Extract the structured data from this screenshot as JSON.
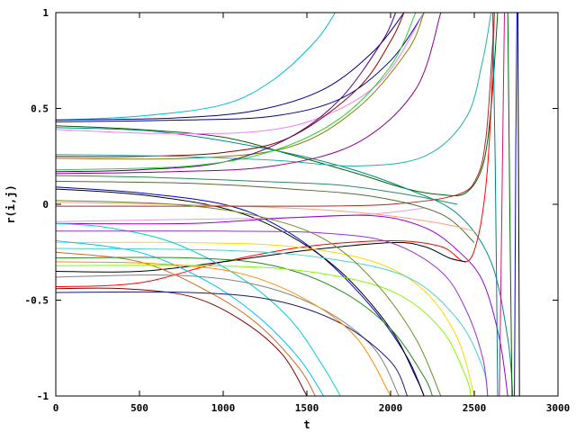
{
  "chart_data": {
    "type": "line",
    "title": "",
    "xlabel": "t",
    "ylabel": "r(i,j)",
    "xlim": [
      0,
      3000
    ],
    "ylim": [
      -1,
      1
    ],
    "grid": false,
    "legend": "none",
    "x_ticks": [
      0,
      500,
      1000,
      1500,
      2000,
      2500,
      3000
    ],
    "y_ticks": [
      -1,
      -0.5,
      0,
      0.5,
      1
    ],
    "x_tick_labels": [
      "0",
      "500",
      "1000",
      "1500",
      "2000",
      "2500",
      "3000"
    ],
    "y_tick_labels": [
      "-1",
      "-0.5",
      "0",
      "0.5",
      "1"
    ],
    "series": [
      {
        "color": "#00bcd4",
        "values": [
          [
            0,
            0.44
          ],
          [
            500,
            0.46
          ],
          [
            1000,
            0.52
          ],
          [
            1300,
            0.65
          ],
          [
            1550,
            0.85
          ],
          [
            1670,
            1.0
          ]
        ]
      },
      {
        "color": "#000080",
        "values": [
          [
            0,
            0.44
          ],
          [
            700,
            0.45
          ],
          [
            1200,
            0.49
          ],
          [
            1600,
            0.6
          ],
          [
            1900,
            0.8
          ],
          [
            2080,
            1.0
          ]
        ]
      },
      {
        "color": "#00008b",
        "values": [
          [
            0,
            0.43
          ],
          [
            800,
            0.44
          ],
          [
            1300,
            0.46
          ],
          [
            1700,
            0.55
          ],
          [
            2000,
            0.75
          ],
          [
            2200,
            1.0
          ]
        ]
      },
      {
        "color": "#006400",
        "values": [
          [
            0,
            0.41
          ],
          [
            500,
            0.39
          ],
          [
            1000,
            0.35
          ],
          [
            1400,
            0.26
          ],
          [
            1800,
            0.16
          ],
          [
            2100,
            0.08
          ],
          [
            2300,
            0.05
          ],
          [
            2450,
            0.06
          ],
          [
            2550,
            0.2
          ],
          [
            2600,
            0.5
          ],
          [
            2640,
            1.0
          ]
        ]
      },
      {
        "color": "#008b8b",
        "values": [
          [
            0,
            0.4
          ],
          [
            600,
            0.38
          ],
          [
            1200,
            0.3
          ],
          [
            1700,
            0.2
          ],
          [
            2100,
            0.08
          ],
          [
            2400,
            -0.05
          ],
          [
            2600,
            -0.3
          ],
          [
            2700,
            -0.7
          ],
          [
            2730,
            -1.0
          ]
        ]
      },
      {
        "color": "#ee82ee",
        "values": [
          [
            0,
            0.39
          ],
          [
            600,
            0.37
          ],
          [
            1200,
            0.38
          ],
          [
            1600,
            0.46
          ],
          [
            1950,
            0.65
          ],
          [
            2200,
            1.0
          ]
        ]
      },
      {
        "color": "#8b0000",
        "values": [
          [
            0,
            0.25
          ],
          [
            500,
            0.25
          ],
          [
            1000,
            0.27
          ],
          [
            1400,
            0.35
          ],
          [
            1800,
            0.6
          ],
          [
            2000,
            0.85
          ],
          [
            2080,
            1.0
          ]
        ]
      },
      {
        "color": "#808000",
        "values": [
          [
            0,
            0.24
          ],
          [
            800,
            0.24
          ],
          [
            1400,
            0.3
          ],
          [
            1800,
            0.5
          ],
          [
            2100,
            0.8
          ],
          [
            2200,
            1.0
          ]
        ]
      },
      {
        "color": "#20b2aa",
        "values": [
          [
            0,
            0.26
          ],
          [
            700,
            0.25
          ],
          [
            1300,
            0.23
          ],
          [
            1800,
            0.2
          ],
          [
            2200,
            0.25
          ],
          [
            2450,
            0.45
          ],
          [
            2550,
            0.75
          ],
          [
            2600,
            1.0
          ]
        ]
      },
      {
        "color": "#4b0082",
        "values": [
          [
            0,
            0.17
          ],
          [
            500,
            0.18
          ],
          [
            1000,
            0.22
          ],
          [
            1400,
            0.35
          ],
          [
            1700,
            0.55
          ],
          [
            1950,
            0.85
          ],
          [
            2030,
            1.0
          ]
        ]
      },
      {
        "color": "#8b008b",
        "values": [
          [
            0,
            0.16
          ],
          [
            700,
            0.17
          ],
          [
            1300,
            0.2
          ],
          [
            1800,
            0.32
          ],
          [
            2150,
            0.6
          ],
          [
            2300,
            1.0
          ]
        ]
      },
      {
        "color": "#2e8b57",
        "values": [
          [
            0,
            0.15
          ],
          [
            600,
            0.14
          ],
          [
            1200,
            0.12
          ],
          [
            1700,
            0.1
          ],
          [
            2100,
            0.05
          ],
          [
            2400,
            0.0
          ]
        ]
      },
      {
        "color": "#556b2f",
        "values": [
          [
            0,
            0.12
          ],
          [
            800,
            0.11
          ],
          [
            1400,
            0.08
          ],
          [
            1900,
            0.04
          ],
          [
            2300,
            -0.05
          ],
          [
            2500,
            -0.2
          ]
        ]
      },
      {
        "color": "#0000cd",
        "values": [
          [
            0,
            0.09
          ],
          [
            500,
            0.06
          ],
          [
            1000,
            0.0
          ],
          [
            1300,
            -0.1
          ],
          [
            1600,
            -0.28
          ],
          [
            1900,
            -0.55
          ],
          [
            2100,
            -0.8
          ],
          [
            2200,
            -1.0
          ]
        ]
      },
      {
        "color": "#000000",
        "values": [
          [
            0,
            0.08
          ],
          [
            500,
            0.05
          ],
          [
            1000,
            -0.02
          ],
          [
            1350,
            -0.14
          ],
          [
            1700,
            -0.35
          ],
          [
            2000,
            -0.65
          ],
          [
            2150,
            -0.9
          ],
          [
            2200,
            -1.0
          ]
        ]
      },
      {
        "color": "#ffa07a",
        "values": [
          [
            0,
            0.01
          ],
          [
            700,
            0.0
          ],
          [
            1400,
            -0.02
          ],
          [
            1900,
            -0.05
          ],
          [
            2300,
            -0.1
          ],
          [
            2500,
            -0.14
          ]
        ]
      },
      {
        "color": "#a52a2a",
        "values": [
          [
            0,
            -0.01
          ],
          [
            800,
            -0.01
          ],
          [
            1500,
            -0.01
          ],
          [
            2000,
            0.0
          ],
          [
            2400,
            0.05
          ],
          [
            2520,
            0.15
          ],
          [
            2570,
            0.35
          ],
          [
            2600,
            0.7
          ],
          [
            2620,
            1.0
          ]
        ]
      },
      {
        "color": "#dda0dd",
        "values": [
          [
            0,
            -0.09
          ],
          [
            700,
            -0.08
          ],
          [
            1400,
            -0.07
          ],
          [
            1900,
            -0.05
          ],
          [
            2200,
            -0.02
          ]
        ]
      },
      {
        "color": "#9400d3",
        "values": [
          [
            0,
            -0.1
          ],
          [
            800,
            -0.1
          ],
          [
            1400,
            -0.07
          ],
          [
            1900,
            -0.06
          ],
          [
            2200,
            -0.12
          ],
          [
            2400,
            -0.24
          ],
          [
            2550,
            -0.4
          ],
          [
            2650,
            -0.7
          ],
          [
            2700,
            -1.0
          ]
        ]
      },
      {
        "color": "#ff0000",
        "values": [
          [
            0,
            -0.43
          ],
          [
            500,
            -0.41
          ],
          [
            1000,
            -0.3
          ],
          [
            1500,
            -0.22
          ],
          [
            2000,
            -0.19
          ],
          [
            2300,
            -0.22
          ],
          [
            2450,
            -0.3
          ],
          [
            2520,
            -0.18
          ],
          [
            2570,
            0.1
          ],
          [
            2600,
            0.5
          ],
          [
            2620,
            1.0
          ]
        ]
      },
      {
        "color": "#000000",
        "values": [
          [
            0,
            -0.35
          ],
          [
            500,
            -0.35
          ],
          [
            1000,
            -0.3
          ],
          [
            1500,
            -0.24
          ],
          [
            2000,
            -0.2
          ],
          [
            2200,
            -0.22
          ],
          [
            2350,
            -0.28
          ],
          [
            2450,
            -0.3
          ]
        ]
      },
      {
        "color": "#ffd700",
        "values": [
          [
            0,
            -0.2
          ],
          [
            800,
            -0.2
          ],
          [
            1400,
            -0.22
          ],
          [
            1900,
            -0.3
          ],
          [
            2200,
            -0.45
          ],
          [
            2400,
            -0.7
          ],
          [
            2500,
            -1.0
          ]
        ]
      },
      {
        "color": "#00ced1",
        "values": [
          [
            0,
            -0.1
          ],
          [
            300,
            -0.12
          ],
          [
            700,
            -0.2
          ],
          [
            1100,
            -0.38
          ],
          [
            1400,
            -0.6
          ],
          [
            1600,
            -0.85
          ],
          [
            1700,
            -1.0
          ]
        ]
      },
      {
        "color": "#00bfff",
        "values": [
          [
            0,
            -0.19
          ],
          [
            500,
            -0.25
          ],
          [
            900,
            -0.4
          ],
          [
            1200,
            -0.58
          ],
          [
            1450,
            -0.8
          ],
          [
            1600,
            -1.0
          ]
        ]
      },
      {
        "color": "#d2691e",
        "values": [
          [
            0,
            -0.25
          ],
          [
            500,
            -0.3
          ],
          [
            900,
            -0.45
          ],
          [
            1200,
            -0.62
          ],
          [
            1450,
            -0.85
          ],
          [
            1550,
            -1.0
          ]
        ]
      },
      {
        "color": "#228b22",
        "values": [
          [
            0,
            -0.28
          ],
          [
            800,
            -0.28
          ],
          [
            1300,
            -0.32
          ],
          [
            1700,
            -0.45
          ],
          [
            2000,
            -0.65
          ],
          [
            2200,
            -0.9
          ],
          [
            2250,
            -1.0
          ]
        ]
      },
      {
        "color": "#800000",
        "values": [
          [
            0,
            -0.44
          ],
          [
            400,
            -0.44
          ],
          [
            800,
            -0.48
          ],
          [
            1100,
            -0.6
          ],
          [
            1350,
            -0.78
          ],
          [
            1500,
            -1.0
          ]
        ]
      },
      {
        "color": "#7cfc00",
        "values": [
          [
            0,
            -0.32
          ],
          [
            900,
            -0.32
          ],
          [
            1500,
            -0.35
          ],
          [
            2000,
            -0.45
          ],
          [
            2300,
            -0.65
          ],
          [
            2450,
            -0.9
          ],
          [
            2480,
            -1.0
          ]
        ]
      },
      {
        "color": "#48d1cc",
        "values": [
          [
            0,
            -0.23
          ],
          [
            1000,
            -0.24
          ],
          [
            1600,
            -0.28
          ],
          [
            2100,
            -0.38
          ],
          [
            2400,
            -0.6
          ],
          [
            2550,
            -0.85
          ],
          [
            2580,
            -1.0
          ]
        ]
      },
      {
        "color": "#9932cc",
        "values": [
          [
            0,
            -0.14
          ],
          [
            1000,
            -0.14
          ],
          [
            1600,
            -0.15
          ],
          [
            2000,
            -0.2
          ],
          [
            2300,
            -0.35
          ],
          [
            2450,
            -0.55
          ],
          [
            2550,
            -0.8
          ],
          [
            2580,
            -1.0
          ]
        ]
      },
      {
        "color": "#808080",
        "values": [
          [
            0,
            -0.38
          ],
          [
            700,
            -0.37
          ],
          [
            1200,
            -0.42
          ],
          [
            1600,
            -0.55
          ],
          [
            1900,
            -0.75
          ],
          [
            2050,
            -1.0
          ]
        ]
      },
      {
        "color": "#191970",
        "values": [
          [
            0,
            -0.46
          ],
          [
            800,
            -0.46
          ],
          [
            1300,
            -0.5
          ],
          [
            1700,
            -0.62
          ],
          [
            2000,
            -0.82
          ],
          [
            2100,
            -1.0
          ]
        ]
      },
      {
        "color": "#ff8c00",
        "values": [
          [
            0,
            -0.3
          ],
          [
            600,
            -0.31
          ],
          [
            1100,
            -0.36
          ],
          [
            1500,
            -0.5
          ],
          [
            1800,
            -0.7
          ],
          [
            2000,
            -1.0
          ]
        ]
      },
      {
        "color": "#32cd32",
        "values": [
          [
            0,
            0.18
          ],
          [
            800,
            0.2
          ],
          [
            1300,
            0.28
          ],
          [
            1700,
            0.45
          ],
          [
            2000,
            0.72
          ],
          [
            2150,
            1.0
          ]
        ]
      },
      {
        "color": "#6b8e23",
        "values": [
          [
            0,
            0.02
          ],
          [
            700,
            0.0
          ],
          [
            1200,
            -0.06
          ],
          [
            1600,
            -0.18
          ],
          [
            1900,
            -0.4
          ],
          [
            2150,
            -0.7
          ],
          [
            2300,
            -1.0
          ]
        ]
      },
      {
        "color": "#c71585",
        "values": [
          [
            2650,
            -1.0
          ],
          [
            2665,
            0.0
          ],
          [
            2680,
            1.0
          ]
        ]
      },
      {
        "color": "#006400",
        "values": [
          [
            2700,
            1.0
          ],
          [
            2712,
            0.0
          ],
          [
            2725,
            -1.0
          ]
        ]
      },
      {
        "color": "#0000ff",
        "values": [
          [
            2740,
            -1.0
          ],
          [
            2748,
            0.3
          ],
          [
            2755,
            1.0
          ]
        ]
      },
      {
        "color": "#000000",
        "values": [
          [
            2760,
            1.0
          ],
          [
            2765,
            0.0
          ],
          [
            2770,
            -1.0
          ]
        ]
      },
      {
        "color": "#008080",
        "values": [
          [
            2610,
            1.0
          ],
          [
            2625,
            0.2
          ],
          [
            2640,
            -1.0
          ]
        ]
      }
    ]
  }
}
